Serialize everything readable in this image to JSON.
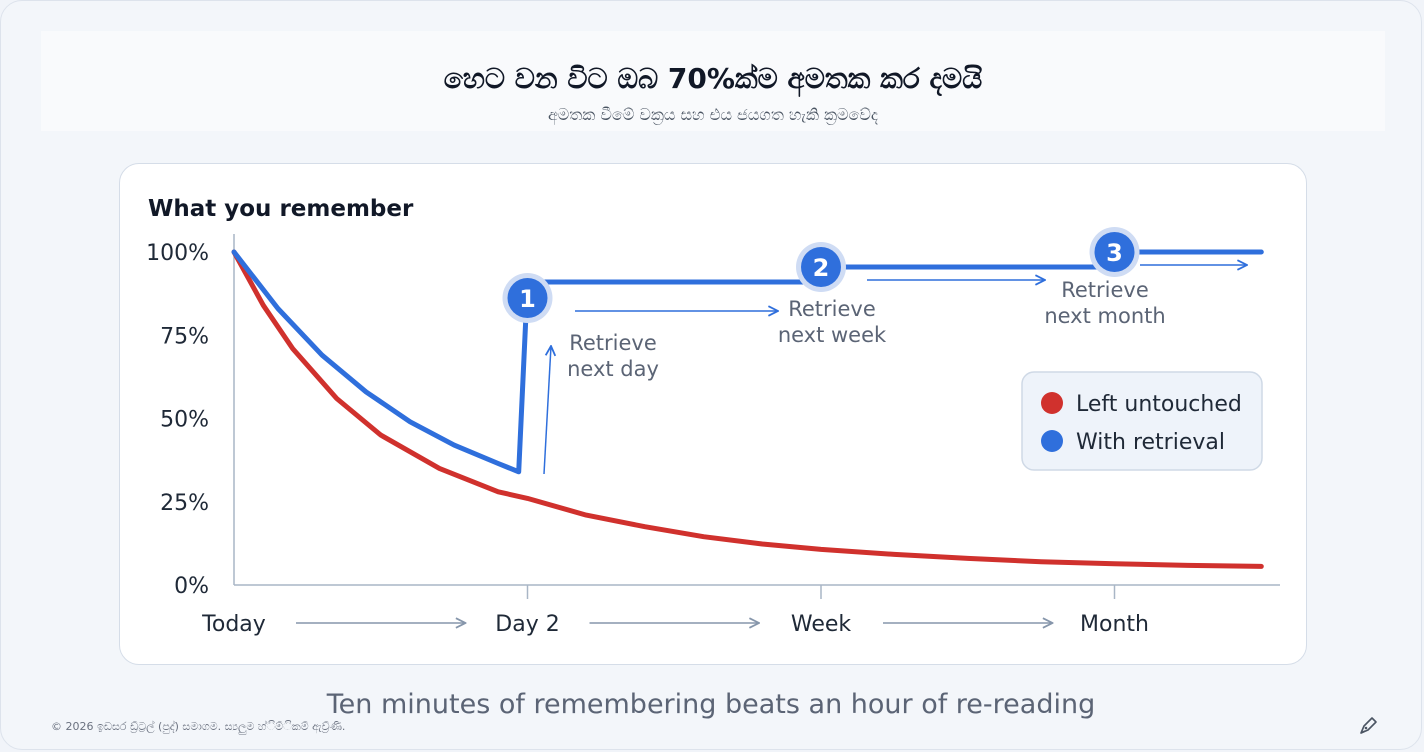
{
  "header": {
    "title": "හෙට වන විට ඔබ 70%ක්ම අමතක කර දමයි",
    "subtitle": "අමතක වීමේ වක්‍රය සහ එය ජයගත හැකි ක්‍රමවේද"
  },
  "chart_data": {
    "type": "line",
    "ylabel": "What you remember",
    "x_categories": [
      "Today",
      "Day 2",
      "Week",
      "Month"
    ],
    "y_ticks": [
      "0%",
      "25%",
      "50%",
      "75%",
      "100%"
    ],
    "ylim": [
      0,
      100
    ],
    "series": [
      {
        "name": "Left untouched",
        "color": "#d0312d",
        "points": [
          [
            0,
            100
          ],
          [
            0.1,
            84
          ],
          [
            0.2,
            71
          ],
          [
            0.35,
            56
          ],
          [
            0.5,
            45
          ],
          [
            0.7,
            35
          ],
          [
            0.9,
            28
          ],
          [
            1,
            26
          ],
          [
            1.2,
            21
          ],
          [
            1.4,
            17.5
          ],
          [
            1.6,
            14.5
          ],
          [
            1.8,
            12.3
          ],
          [
            2,
            10.7
          ],
          [
            2.25,
            9.2
          ],
          [
            2.5,
            8.0
          ],
          [
            2.75,
            7.0
          ],
          [
            3,
            6.4
          ],
          [
            3.25,
            5.9
          ],
          [
            3.5,
            5.6
          ]
        ]
      },
      {
        "name": "With retrieval",
        "color": "#2f6fdc",
        "points": [
          [
            0,
            100
          ],
          [
            0.15,
            83
          ],
          [
            0.3,
            69
          ],
          [
            0.45,
            58
          ],
          [
            0.6,
            49
          ],
          [
            0.75,
            42
          ],
          [
            0.9,
            36.5
          ],
          [
            0.97,
            34
          ],
          [
            1,
            91
          ],
          [
            1.95,
            91
          ],
          [
            2,
            95.5
          ],
          [
            2.95,
            95.5
          ],
          [
            3,
            100
          ],
          [
            3.5,
            100
          ]
        ]
      }
    ],
    "annotations": [
      {
        "number": "1",
        "lines": [
          "Retrieve",
          "next day"
        ],
        "x": 1,
        "y": 91
      },
      {
        "number": "2",
        "lines": [
          "Retrieve",
          "next week"
        ],
        "x": 2,
        "y": 95.5
      },
      {
        "number": "3",
        "lines": [
          "Retrieve",
          "next month"
        ],
        "x": 3,
        "y": 100
      }
    ],
    "legend_position": "right"
  },
  "footer": {
    "caption": "Ten minutes of remembering beats an hour of re-reading",
    "copyright": "© 2026 ඉඩසර ඩ්‍ර්ට්‍රල් (පුද්) සමාගම. ස්‍යලුම හ්‍ිම්‍ිකම් ඇව්‍ර්ණි.",
    "icon": "pen-icon"
  }
}
